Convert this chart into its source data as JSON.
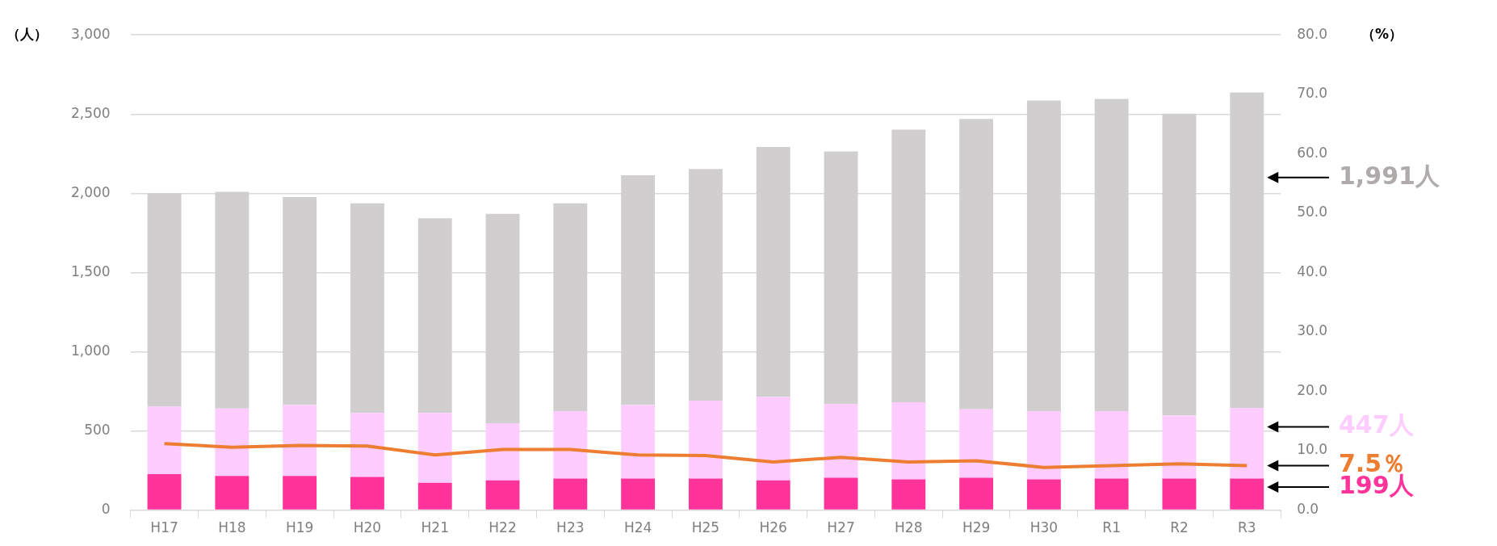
{
  "chart_data": {
    "type": "bar",
    "stacked": true,
    "ylabel": "（人）",
    "y2label": "（%）",
    "categories": [
      "H17",
      "H18",
      "H19",
      "H20",
      "H21",
      "H22",
      "H23",
      "H24",
      "H25",
      "H26",
      "H27",
      "H28",
      "H29",
      "H30",
      "R1",
      "R2",
      "R3"
    ],
    "series": [
      {
        "color": "#ff3399",
        "values": [
          227,
          216,
          216,
          210,
          172,
          188,
          199,
          199,
          199,
          188,
          205,
          194,
          205,
          194,
          199,
          199,
          199
        ]
      },
      {
        "color": "#ffccff",
        "values": [
          426,
          426,
          448,
          404,
          442,
          360,
          426,
          465,
          493,
          526,
          465,
          487,
          432,
          431,
          426,
          399,
          447
        ]
      },
      {
        "color": "#d0cece",
        "values": [
          1347,
          1367,
          1312,
          1323,
          1229,
          1323,
          1312,
          1450,
          1461,
          1578,
          1594,
          1721,
          1832,
          1960,
          1971,
          1904,
          1991
        ]
      },
      {
        "type": "line",
        "axis": "y2",
        "color": "#ed7d31",
        "values": [
          11.2,
          10.6,
          10.9,
          10.8,
          9.3,
          10.2,
          10.2,
          9.3,
          9.2,
          8.1,
          8.9,
          8.1,
          8.3,
          7.2,
          7.5,
          7.8,
          7.5
        ]
      }
    ],
    "ylim": [
      0,
      3000
    ],
    "yticks": [
      {
        "value": 0,
        "label": "0"
      },
      {
        "value": 500,
        "label": "500"
      },
      {
        "value": 1000,
        "label": "1,000"
      },
      {
        "value": 1500,
        "label": "1,500"
      },
      {
        "value": 2000,
        "label": "2,000"
      },
      {
        "value": 2500,
        "label": "2,500"
      },
      {
        "value": 3000,
        "label": "3,000"
      }
    ],
    "y2lim": [
      0,
      80
    ],
    "y2ticks": [
      {
        "value": 0,
        "label": "0.0"
      },
      {
        "value": 10,
        "label": "10.0"
      },
      {
        "value": 20,
        "label": "20.0"
      },
      {
        "value": 30,
        "label": "30.0"
      },
      {
        "value": 40,
        "label": "40.0"
      },
      {
        "value": 50,
        "label": "50.0"
      },
      {
        "value": 60,
        "label": "60.0"
      },
      {
        "value": 70,
        "label": "70.0"
      },
      {
        "value": 80,
        "label": "80.0"
      }
    ],
    "grid": "y",
    "annotations": [
      "199人",
      "447人",
      "1,991人",
      "7.5％"
    ]
  }
}
